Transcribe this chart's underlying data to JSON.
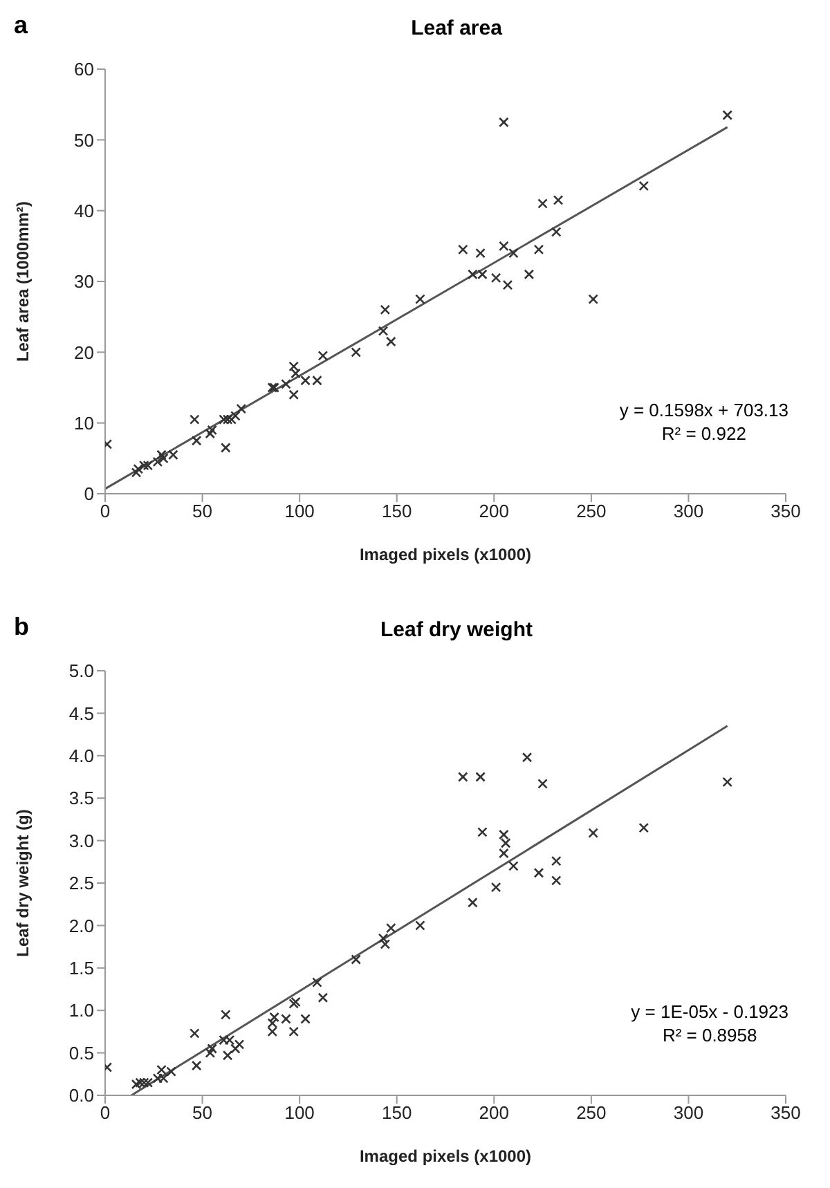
{
  "chart_data": [
    {
      "type": "scatter",
      "title": "Leaf area",
      "xlabel": "Imaged pixels (x1000)",
      "ylabel": "Leaf area (1000mm²)",
      "marker": "cross",
      "xlim": [
        0,
        350
      ],
      "xticks": [
        0,
        50,
        100,
        150,
        200,
        250,
        300,
        350
      ],
      "ylim": [
        0,
        60
      ],
      "yticks": [
        0,
        10,
        20,
        30,
        40,
        50,
        60
      ],
      "annotations": [
        "a",
        "y = 0.1598x + 703.13",
        "R² = 0.922"
      ],
      "series": [
        {
          "color": "#333333",
          "x": [
            1,
            16,
            17,
            20,
            22,
            27,
            28,
            29,
            30,
            35,
            46,
            47,
            54,
            55,
            61,
            62,
            63,
            65,
            67,
            70,
            86,
            87,
            93,
            97,
            97,
            98,
            103,
            109,
            112,
            129,
            143,
            144,
            147,
            162,
            184,
            189,
            193,
            194,
            201,
            205,
            205,
            207,
            210,
            218,
            223,
            225,
            232,
            233,
            251,
            277,
            320
          ],
          "values": [
            7,
            3,
            3.5,
            4,
            4,
            4.5,
            null,
            5.5,
            5,
            5.5,
            10.5,
            7.5,
            8.5,
            9,
            10.5,
            6.5,
            10.5,
            10.5,
            11,
            12,
            15,
            15,
            15.5,
            14,
            18,
            17,
            16,
            16,
            19.5,
            20,
            23,
            26,
            21.5,
            27.5,
            34.5,
            31,
            34,
            31,
            30.5,
            35,
            52.5,
            29.5,
            34,
            31,
            34.5,
            41,
            37,
            41.5,
            27.5,
            43.5,
            53.5
          ]
        },
        {
          "type": "line",
          "color": "#555555",
          "marker": "none",
          "x": [
            0,
            320
          ],
          "values": [
            0.7,
            51.8
          ]
        }
      ]
    },
    {
      "type": "scatter",
      "title": "Leaf dry weight",
      "xlabel": "Imaged pixels (x1000)",
      "ylabel": "Leaf dry weight (g)",
      "marker": "cross",
      "xlim": [
        0,
        350
      ],
      "xticks": [
        0,
        50,
        100,
        150,
        200,
        250,
        300,
        350
      ],
      "ylim": [
        0,
        5
      ],
      "yticks": [
        {
          "value": 0,
          "label": "0.0"
        },
        {
          "value": 0.5,
          "label": "0.5"
        },
        {
          "value": 1,
          "label": "1.0"
        },
        {
          "value": 1.5,
          "label": "1.5"
        },
        {
          "value": 2,
          "label": "2.0"
        },
        {
          "value": 2.5,
          "label": "2.5"
        },
        {
          "value": 3,
          "label": "3.0"
        },
        {
          "value": 3.5,
          "label": "3.5"
        },
        {
          "value": 4,
          "label": "4.0"
        },
        {
          "value": 4.5,
          "label": "4.5"
        },
        {
          "value": 5,
          "label": "5.0"
        }
      ],
      "annotations": [
        "b",
        "y = 1E-05x - 0.1923",
        "R² = 0.8958"
      ],
      "series": [
        {
          "color": "#333333",
          "x": [
            1,
            16,
            18,
            20,
            22,
            27,
            28,
            29,
            30,
            34,
            46,
            47,
            54,
            55,
            61,
            62,
            63,
            64,
            67,
            69,
            86,
            86,
            87,
            93,
            97,
            97,
            98,
            103,
            109,
            112,
            129,
            143,
            144,
            147,
            162,
            184,
            189,
            193,
            194,
            201,
            205,
            205,
            206,
            210,
            217,
            223,
            225,
            232,
            232,
            251,
            277,
            320
          ],
          "values": [
            0.33,
            0.13,
            0.15,
            0.15,
            0.15,
            0.2,
            null,
            0.3,
            0.2,
            0.28,
            0.73,
            0.35,
            0.5,
            0.55,
            0.65,
            0.95,
            0.47,
            0.65,
            0.55,
            0.6,
            0.75,
            0.85,
            0.92,
            0.9,
            0.75,
            1.08,
            1.1,
            0.9,
            1.33,
            1.15,
            1.6,
            1.85,
            1.78,
            1.97,
            2,
            3.75,
            2.27,
            3.75,
            3.1,
            2.45,
            2.85,
            3.07,
            2.97,
            2.7,
            3.98,
            2.62,
            3.67,
            2.76,
            2.53,
            3.09,
            3.15,
            3.69
          ]
        },
        {
          "type": "line",
          "color": "#555555",
          "marker": "none",
          "x": [
            13.5,
            320
          ],
          "values": [
            0,
            4.35
          ]
        }
      ]
    }
  ]
}
